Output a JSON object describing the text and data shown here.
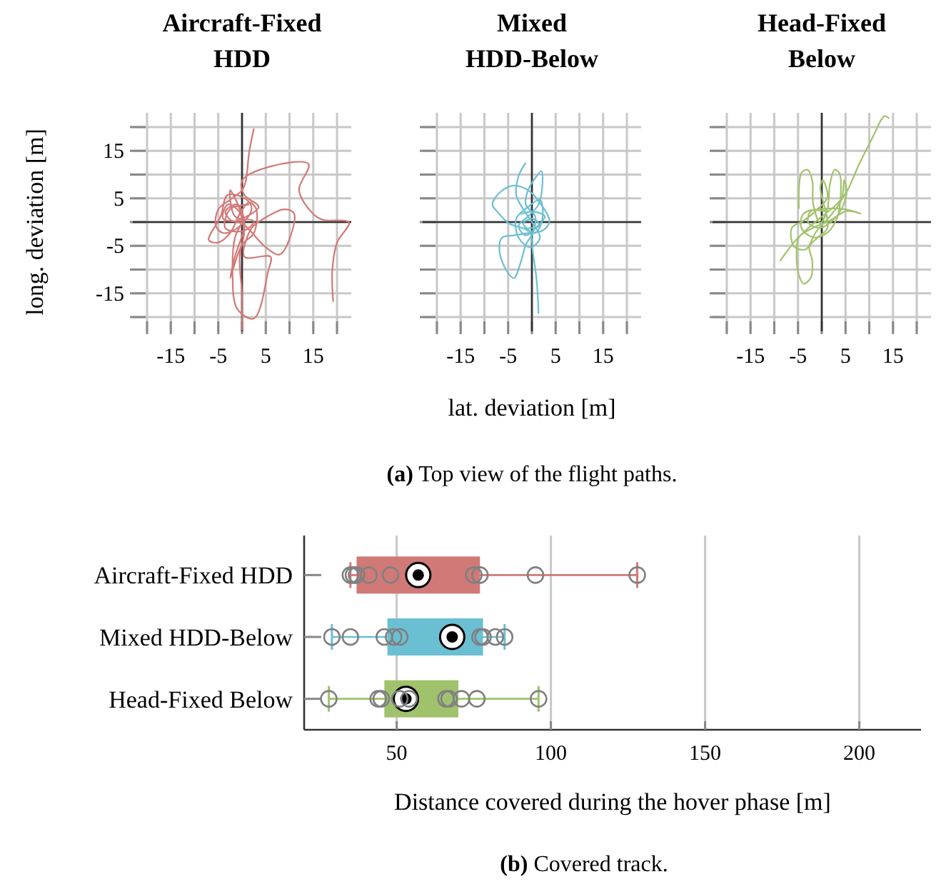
{
  "chart_data": [
    {
      "type": "line",
      "title": "Aircraft-Fixed HDD",
      "ylabel": "long. deviation [m]",
      "xlim": [
        -23,
        23
      ],
      "ylim": [
        -23,
        23
      ],
      "xticks": [
        {
          "value": -20,
          "label": null
        },
        -15,
        {
          "value": -10,
          "label": null
        },
        -5,
        {
          "value": 0,
          "label": null
        },
        5,
        {
          "value": 10,
          "label": null
        },
        15,
        {
          "value": 20,
          "label": null
        }
      ],
      "yticks": [
        {
          "value": -20,
          "label": null
        },
        -15,
        {
          "value": -10,
          "label": null
        },
        -5,
        {
          "value": 0,
          "label": null
        },
        5,
        {
          "value": 10,
          "label": null
        },
        15,
        {
          "value": 20,
          "label": null
        }
      ],
      "grid": true,
      "series": [
        {
          "color": "#d17977",
          "x": [
            2.5,
            1.5,
            0.8,
            0,
            -2.5,
            -5,
            -5.5,
            -4,
            -1,
            2,
            1,
            -3,
            -4.5,
            -7,
            -5,
            -2.5,
            -0.5,
            1.5,
            3,
            2.5,
            0,
            -2.5,
            -1.5,
            0.5,
            -1,
            -3.5,
            -2,
            1,
            3.5,
            0.5,
            0,
            6,
            14,
            12,
            15,
            17,
            22.5,
            20,
            19,
            19.2,
            null,
            0,
            0,
            -0.5,
            0.5,
            -1,
            -3,
            -4,
            0,
            5,
            8,
            11,
            9,
            4.5,
            2,
            0.5,
            6,
            5.5,
            2.5,
            -1,
            -2,
            -1.5,
            0,
            -2.5,
            -1.5,
            2.5,
            0.5,
            -3.5,
            -2.5,
            1.5
          ],
          "values": [
            19.7,
            14.7,
            8.7,
            6.7,
            4.7,
            2.7,
            -0.8,
            -2.3,
            -1.3,
            2.7,
            4.7,
            5.7,
            1.2,
            -3.8,
            -4.3,
            -2.3,
            1.7,
            4.2,
            2.7,
            -2.3,
            -4.8,
            -11.8,
            -7.3,
            -0.3,
            3.7,
            2.2,
            0.2,
            1.2,
            3.2,
            5.7,
            8.7,
            11.7,
            12.2,
            6.7,
            1.7,
            0.5,
            -0.1,
            -4.3,
            -10.3,
            -16.8,
            null,
            -22.8,
            -15.3,
            -7.3,
            -1.3,
            2.7,
            3.7,
            0.7,
            -0.3,
            -5.3,
            -6.8,
            1.7,
            2.7,
            0.7,
            -1.3,
            -7.3,
            -7.3,
            -10.3,
            -20.3,
            -18.3,
            -10.3,
            -3.3,
            0.7,
            6.7,
            1.2,
            0.2,
            -1.8,
            -1.3,
            2.7,
            3.7
          ]
        }
      ]
    },
    {
      "type": "line",
      "title": "Mixed HDD-Below",
      "xlabel": "lat. deviation [m]",
      "annotations": [
        "(a) Top view of the flight paths."
      ],
      "tick_labels": "x",
      "xlim": [
        -23,
        23
      ],
      "ylim": [
        -23,
        23
      ],
      "xticks": [
        {
          "value": -20,
          "label": null
        },
        -15,
        {
          "value": -10,
          "label": null
        },
        -5,
        {
          "value": 0,
          "label": null
        },
        5,
        {
          "value": 10,
          "label": null
        },
        15,
        {
          "value": 20,
          "label": null
        }
      ],
      "yticks": [
        {
          "value": -20,
          "label": null
        },
        {
          "value": -15,
          "label": null
        },
        {
          "value": -10,
          "label": null
        },
        {
          "value": -5,
          "label": null
        },
        {
          "value": 0,
          "label": null
        },
        {
          "value": 5,
          "label": null
        },
        {
          "value": 10,
          "label": null
        },
        {
          "value": 15,
          "label": null
        },
        {
          "value": 20,
          "label": null
        }
      ],
      "grid": true,
      "series": [
        {
          "color": "#6bbfd2",
          "x": [
            -1.3,
            -2.8,
            -3.3,
            -1.8,
            0.2,
            1.7,
            -0.3,
            -2.8,
            -3.3,
            -0.8,
            1.7,
            2.2,
            0.7,
            -1.8,
            -4.8,
            -7.3,
            -8.3,
            -6.8,
            -3.8,
            -0.8,
            1.2,
            3.7,
            2.2,
            -0.8,
            -3.8,
            -6.3,
            -6.8,
            -5.3,
            -3.8,
            -2.3,
            -1.3,
            0.2,
            0.7,
            -1.3,
            -0.8,
            1,
            2,
            2.2,
            1.4,
            -0.8,
            -2.8,
            -1.3,
            0.7,
            2.7,
            0.2,
            -2.3,
            null,
            1.4,
            1,
            0.2,
            -0.3,
            -1.8,
            0.2,
            1.7,
            -0.8
          ],
          "values": [
            12.5,
            9.7,
            5.7,
            2.7,
            -0.3,
            -3.3,
            -5.3,
            -3.3,
            0.7,
            3.2,
            4.7,
            0.7,
            -2.3,
            -1.3,
            -0.3,
            2.2,
            3.7,
            6.2,
            7.7,
            6.7,
            4.7,
            0.2,
            -1.8,
            -2.3,
            -2.8,
            -3.3,
            -6.3,
            -10.3,
            -11.8,
            -8.3,
            -4.8,
            -2.3,
            1.2,
            3.7,
            6.7,
            9.7,
            10.7,
            7.7,
            3.7,
            1.2,
            -0.8,
            -2.8,
            -1.3,
            1.2,
            2.2,
            1.7,
            null,
            -19.3,
            -12.3,
            -6.3,
            -2.3,
            -0.3,
            0.7,
            -0.8,
            -1.3
          ]
        }
      ]
    },
    {
      "type": "line",
      "title": "Head-Fixed Below",
      "tick_labels": "x",
      "xlim": [
        -23,
        23
      ],
      "ylim": [
        -23,
        23
      ],
      "xticks": [
        {
          "value": -20,
          "label": null
        },
        -15,
        {
          "value": -10,
          "label": null
        },
        -5,
        {
          "value": 0,
          "label": null
        },
        5,
        {
          "value": 10,
          "label": null
        },
        15,
        {
          "value": 20,
          "label": null
        }
      ],
      "yticks": [
        {
          "value": -20,
          "label": null
        },
        {
          "value": -15,
          "label": null
        },
        {
          "value": -10,
          "label": null
        },
        {
          "value": -5,
          "label": null
        },
        {
          "value": 0,
          "label": null
        },
        {
          "value": 5,
          "label": null
        },
        {
          "value": 10,
          "label": null
        },
        {
          "value": 15,
          "label": null
        },
        {
          "value": 20,
          "label": null
        }
      ],
      "grid": true,
      "series": [
        {
          "color": "#a1c26d",
          "x": [
            -8.8,
            -5.8,
            -2.8,
            0.2,
            3.2,
            5.2,
            7.7,
            10.7,
            13.2,
            14.2,
            null,
            -4.8,
            -4.3,
            -3,
            -2,
            -1.8,
            -0.3,
            1.2,
            1.7,
            2.7,
            3.7,
            4,
            3.2,
            1.2,
            -1.8,
            -4.3,
            -3.8,
            0.2,
            4.2,
            8.2,
            5.2,
            1.7,
            -1.8,
            -4.8,
            -5.3,
            -4.8,
            -3.8,
            -2.3,
            -2,
            -2.6,
            -0.8,
            1.2,
            -0.3,
            0.2,
            1.2,
            -0.8,
            -3.8,
            -6.3,
            -5.8,
            -3.3,
            -1.3,
            2.2,
            4.2,
            4.7,
            5.2,
            3.2,
            -0.3,
            -2.8,
            -2.3,
            0.7
          ],
          "values": [
            -8.2,
            -4.2,
            -1.2,
            1.3,
            3.8,
            6.3,
            11.8,
            17.8,
            22.3,
            21.8,
            null,
            2.8,
            10.3,
            11,
            8.8,
            3.8,
            -0.2,
            2.8,
            7.8,
            11,
            10.3,
            5.8,
            0.8,
            -2.2,
            -3.2,
            -1.2,
            1.8,
            2.8,
            2.8,
            1.8,
            2.3,
            0.3,
            -1.2,
            -3.2,
            -7.2,
            -11.2,
            -13,
            -11.7,
            -8.2,
            -5.2,
            -3.2,
            -1.2,
            7.3,
            8.8,
            5.3,
            2.8,
            0.3,
            -1.2,
            -5.2,
            -5.7,
            -2.2,
            1.8,
            4.8,
            8.8,
            5.8,
            1.3,
            -1.2,
            -0.2,
            2.3,
            2.3
          ]
        }
      ]
    },
    {
      "type": "box",
      "orientation": "horizontal",
      "categories": [
        "Aircraft-Fixed HDD",
        "Mixed HDD-Below",
        "Head-Fixed Below"
      ],
      "colors": [
        "#d17977",
        "#6bbfd2",
        "#a1c26d"
      ],
      "boxes": [
        {
          "low": 35,
          "q1": 37,
          "median": 57,
          "q3": 77,
          "high": 128
        },
        {
          "low": 29,
          "q1": 47,
          "median": 68,
          "q3": 78,
          "high": 85
        },
        {
          "low": 28,
          "q1": 46,
          "median": 53,
          "q3": 70,
          "high": 96
        }
      ],
      "series": [
        {
          "type": "scatter",
          "color": "#808080",
          "x": [
            "Aircraft-Fixed HDD",
            "Aircraft-Fixed HDD",
            "Aircraft-Fixed HDD",
            "Aircraft-Fixed HDD",
            "Aircraft-Fixed HDD",
            "Aircraft-Fixed HDD",
            "Aircraft-Fixed HDD",
            "Aircraft-Fixed HDD",
            "Aircraft-Fixed HDD",
            "Mixed HDD-Below",
            "Mixed HDD-Below",
            "Mixed HDD-Below",
            "Mixed HDD-Below",
            "Mixed HDD-Below",
            "Mixed HDD-Below",
            "Mixed HDD-Below",
            "Mixed HDD-Below",
            "Mixed HDD-Below",
            "Head-Fixed Below",
            "Head-Fixed Below",
            "Head-Fixed Below",
            "Head-Fixed Below",
            "Head-Fixed Below",
            "Head-Fixed Below",
            "Head-Fixed Below",
            "Head-Fixed Below",
            "Head-Fixed Below",
            "Head-Fixed Below"
          ],
          "values": [
            35,
            36,
            37,
            41,
            48,
            75,
            77,
            95,
            128,
            29,
            35,
            46,
            49,
            51,
            77,
            78,
            82,
            85,
            28,
            44,
            45,
            51,
            54,
            66,
            67,
            71,
            76,
            96
          ]
        }
      ],
      "marker": "circle",
      "xlim": [
        20,
        220
      ],
      "xticks": [
        50,
        100,
        150,
        200
      ],
      "grid": "x",
      "xlabel": "Distance covered during the hover phase [m]",
      "annotations": [
        "(b) Covered track."
      ]
    }
  ]
}
